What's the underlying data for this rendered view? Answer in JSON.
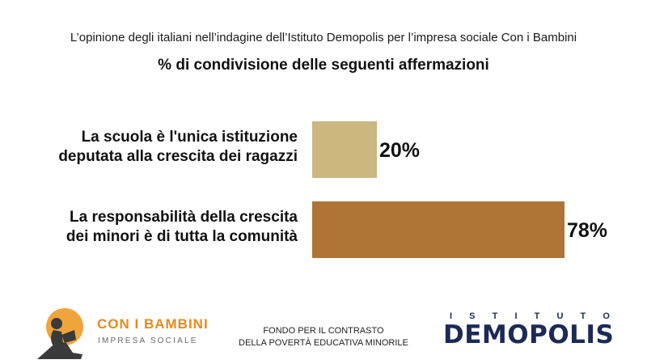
{
  "header": {
    "subtitle": "L’opinione degli italiani nell’indagine dell’Istituto Demopolis per l’impresa sociale Con i Bambini"
  },
  "chart_data": {
    "type": "bar",
    "orientation": "horizontal",
    "title": "% di condivisione delle seguenti affermazioni",
    "categories": [
      [
        "La scuola è l'unica istituzione",
        "deputata alla crescita dei ragazzi"
      ],
      [
        "La responsabilità della crescita",
        "dei minori è di tutta la comunità"
      ]
    ],
    "values": [
      20,
      78
    ],
    "value_labels": [
      "20%",
      "78%"
    ],
    "colors": [
      "#cbb77f",
      "#b07336"
    ],
    "xlim": [
      0,
      100
    ],
    "grid": false,
    "legend": "none"
  },
  "footer": {
    "left_brand": "CON I BAMBINI",
    "left_sub": "IMPRESA SOCIALE",
    "center_lines": [
      "FONDO PER IL CONTRASTO",
      "DELLA POVERTÀ EDUCATIVA MINORILE"
    ],
    "right_top": "ISTITUTO",
    "right_main": "DEMOPOLIS"
  }
}
